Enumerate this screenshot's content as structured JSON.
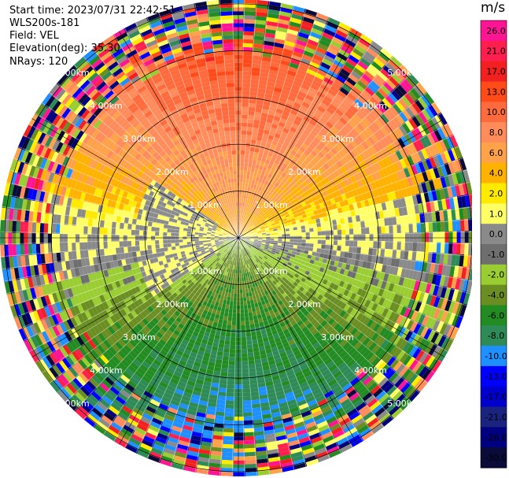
{
  "info": {
    "start_time": "Start time: 2023/07/31 22:42:51",
    "instrument": "WLS200s-181",
    "field": "Field: VEL",
    "elevation": "Elevation(deg): 35.30",
    "nrays": "NRays: 120"
  },
  "colorbar": {
    "unit": "m/s",
    "ticks": [
      "26.0",
      "21.0",
      "17.0",
      "13.0",
      "10.0",
      "8.0",
      "6.0",
      "4.0",
      "2.0",
      "1.0",
      "0.0",
      "-1.0",
      "-2.0",
      "-4.0",
      "-6.0",
      "-8.0",
      "-10.0",
      "-13.0",
      "-17.0",
      "-21.0",
      "-26.0",
      "-30.0"
    ],
    "colors": [
      "#ff1493",
      "#ff1f4f",
      "#f22020",
      "#ff4a1a",
      "#ff6b3d",
      "#ff8c5a",
      "#ffa24a",
      "#ffb300",
      "#ffea00",
      "#ffff66",
      "#8a8a8a",
      "#6e6e6e",
      "#9acd32",
      "#6b8e23",
      "#228b22",
      "#2e8b57",
      "#1e90ff",
      "#0000ff",
      "#0000cd",
      "#1a237e",
      "#000080",
      "#0b0b3a"
    ]
  },
  "chart_data": {
    "type": "heatmap",
    "projection": "polar PPI",
    "field": "VEL",
    "nrays": 120,
    "range_max_km": 5.1,
    "range_rings_km": [
      1.0,
      2.0,
      3.0,
      4.0,
      5.0
    ],
    "ring_labels": [
      "1.00km",
      "2.00km",
      "3.00km",
      "4.00km",
      "5.00km"
    ],
    "value_range": [
      -30.0,
      26.0
    ],
    "pattern": "northern half positive velocities (2 to 10 m/s), southern half negative velocities (-4 to -8 m/s), near-zero band along west-east axis, noisy speckle beyond ~3.8 km"
  }
}
